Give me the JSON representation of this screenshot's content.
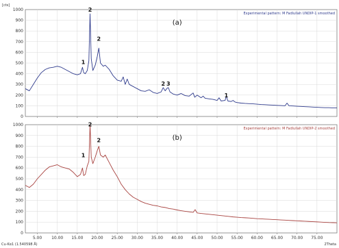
{
  "chart_data": [
    {
      "type": "line",
      "panel_label": "(a)",
      "legend_text": "Experimental pattern: M Fadlullah UNDIP-1 smoothed",
      "y_unit": "[cts]",
      "xlim": [
        2,
        80
      ],
      "ylim": [
        0,
        1000
      ],
      "x_ticks": [
        "5.00",
        "10.00",
        "15.00",
        "20.00",
        "25.00",
        "30.00",
        "35.00",
        "40.00",
        "45.00",
        "50.00",
        "55.00",
        "60.00",
        "65.00",
        "70.00",
        "75.00"
      ],
      "y_ticks": [
        "0",
        "100",
        "200",
        "300",
        "400",
        "500",
        "600",
        "700",
        "800",
        "900",
        "1000"
      ],
      "grid": true,
      "color": "#2e3a8c",
      "peak_labels": [
        {
          "x": 16.5,
          "y": 470,
          "text": "1"
        },
        {
          "x": 18.2,
          "y": 960,
          "text": "2"
        },
        {
          "x": 20.4,
          "y": 690,
          "text": "2"
        },
        {
          "x": 36.5,
          "y": 270,
          "text": "2"
        },
        {
          "x": 37.8,
          "y": 270,
          "text": "3"
        },
        {
          "x": 52.3,
          "y": 160,
          "text": "1"
        }
      ],
      "x": [
        2,
        3,
        4,
        5,
        6,
        7,
        8,
        9,
        10,
        11,
        12,
        13,
        14,
        15,
        15.8,
        16.3,
        16.6,
        17,
        17.5,
        17.9,
        18.2,
        18.5,
        18.9,
        19.5,
        20,
        20.4,
        20.8,
        21.5,
        22,
        23,
        24,
        25,
        26,
        26.5,
        27,
        27.5,
        28,
        29,
        30,
        31,
        32,
        33,
        34,
        35,
        36,
        36.5,
        37,
        37.5,
        37.8,
        38.2,
        39,
        40,
        41,
        42,
        43,
        44,
        44.4,
        45,
        46,
        46.5,
        47,
        48,
        49,
        50,
        50.5,
        51,
        52,
        52.3,
        52.7,
        53.5,
        54,
        54.5,
        55,
        56,
        57,
        58,
        59,
        60,
        61,
        62,
        63,
        64,
        65,
        66,
        67,
        67.5,
        68,
        69,
        70,
        71,
        72,
        73,
        74,
        75,
        76,
        77,
        78,
        79,
        80
      ],
      "values": [
        260,
        240,
        300,
        360,
        410,
        440,
        455,
        460,
        470,
        460,
        440,
        420,
        400,
        390,
        400,
        460,
        410,
        400,
        430,
        520,
        960,
        540,
        430,
        480,
        560,
        640,
        500,
        470,
        480,
        440,
        380,
        340,
        330,
        370,
        300,
        350,
        300,
        280,
        260,
        240,
        235,
        250,
        225,
        215,
        230,
        270,
        240,
        265,
        270,
        230,
        210,
        200,
        215,
        195,
        190,
        220,
        180,
        200,
        175,
        190,
        170,
        165,
        160,
        150,
        175,
        145,
        150,
        190,
        145,
        140,
        150,
        135,
        130,
        125,
        122,
        120,
        118,
        115,
        112,
        110,
        108,
        106,
        104,
        102,
        100,
        125,
        100,
        98,
        96,
        94,
        92,
        90,
        88,
        86,
        84,
        82,
        82,
        80,
        80
      ]
    },
    {
      "type": "line",
      "panel_label": "(b)",
      "legend_text": "Experimental pattern: M Fadlullah UNDIP-2 smoothed",
      "y_unit": "",
      "xlim": [
        2,
        80
      ],
      "ylim": [
        0,
        1000
      ],
      "x_ticks": [
        "5.00",
        "10.00",
        "15.00",
        "20.00",
        "25.00",
        "30.00",
        "35.00",
        "40.00",
        "45.00",
        "50.00",
        "55.00",
        "60.00",
        "65.00",
        "70.00",
        "75.00"
      ],
      "y_ticks": [
        "0",
        "100",
        "200",
        "300",
        "400",
        "500",
        "600",
        "700",
        "800",
        "900",
        "1000"
      ],
      "grid": true,
      "color": "#a8423f",
      "peak_labels": [
        {
          "x": 16.5,
          "y": 680,
          "text": "1"
        },
        {
          "x": 18.2,
          "y": 965,
          "text": "2"
        },
        {
          "x": 20.4,
          "y": 820,
          "text": "2"
        }
      ],
      "x": [
        2,
        3,
        4,
        5,
        6,
        7,
        8,
        9,
        10,
        11,
        12,
        13,
        14,
        15,
        15.8,
        16.3,
        16.6,
        17,
        17.5,
        17.9,
        18.2,
        18.5,
        18.9,
        19.5,
        20,
        20.4,
        20.8,
        21.5,
        22,
        23,
        24,
        25,
        26,
        27,
        28,
        29,
        30,
        31,
        32,
        33,
        34,
        35,
        36,
        37,
        38,
        39,
        40,
        41,
        42,
        43,
        44,
        44.5,
        45,
        46,
        47,
        48,
        49,
        50,
        51,
        52,
        53,
        54,
        55,
        56,
        57,
        58,
        59,
        60,
        61,
        62,
        63,
        64,
        65,
        66,
        67,
        68,
        69,
        70,
        71,
        72,
        73,
        74,
        75,
        76,
        77,
        78,
        79,
        80
      ],
      "values": [
        440,
        420,
        450,
        500,
        540,
        580,
        610,
        620,
        630,
        610,
        600,
        590,
        560,
        520,
        540,
        600,
        530,
        540,
        620,
        660,
        1000,
        700,
        640,
        700,
        760,
        800,
        720,
        700,
        720,
        650,
        580,
        520,
        450,
        400,
        360,
        330,
        310,
        290,
        275,
        265,
        255,
        250,
        240,
        235,
        225,
        220,
        212,
        205,
        200,
        195,
        190,
        215,
        185,
        180,
        176,
        172,
        168,
        164,
        160,
        156,
        152,
        148,
        145,
        142,
        140,
        138,
        135,
        132,
        130,
        128,
        126,
        124,
        122,
        120,
        118,
        116,
        114,
        112,
        110,
        108,
        106,
        104,
        102,
        100,
        98,
        96,
        95,
        94
      ]
    }
  ],
  "footer": {
    "radiation": "Cu-Kα1 (1.540598 Å)",
    "x_unit": "2Theta"
  }
}
